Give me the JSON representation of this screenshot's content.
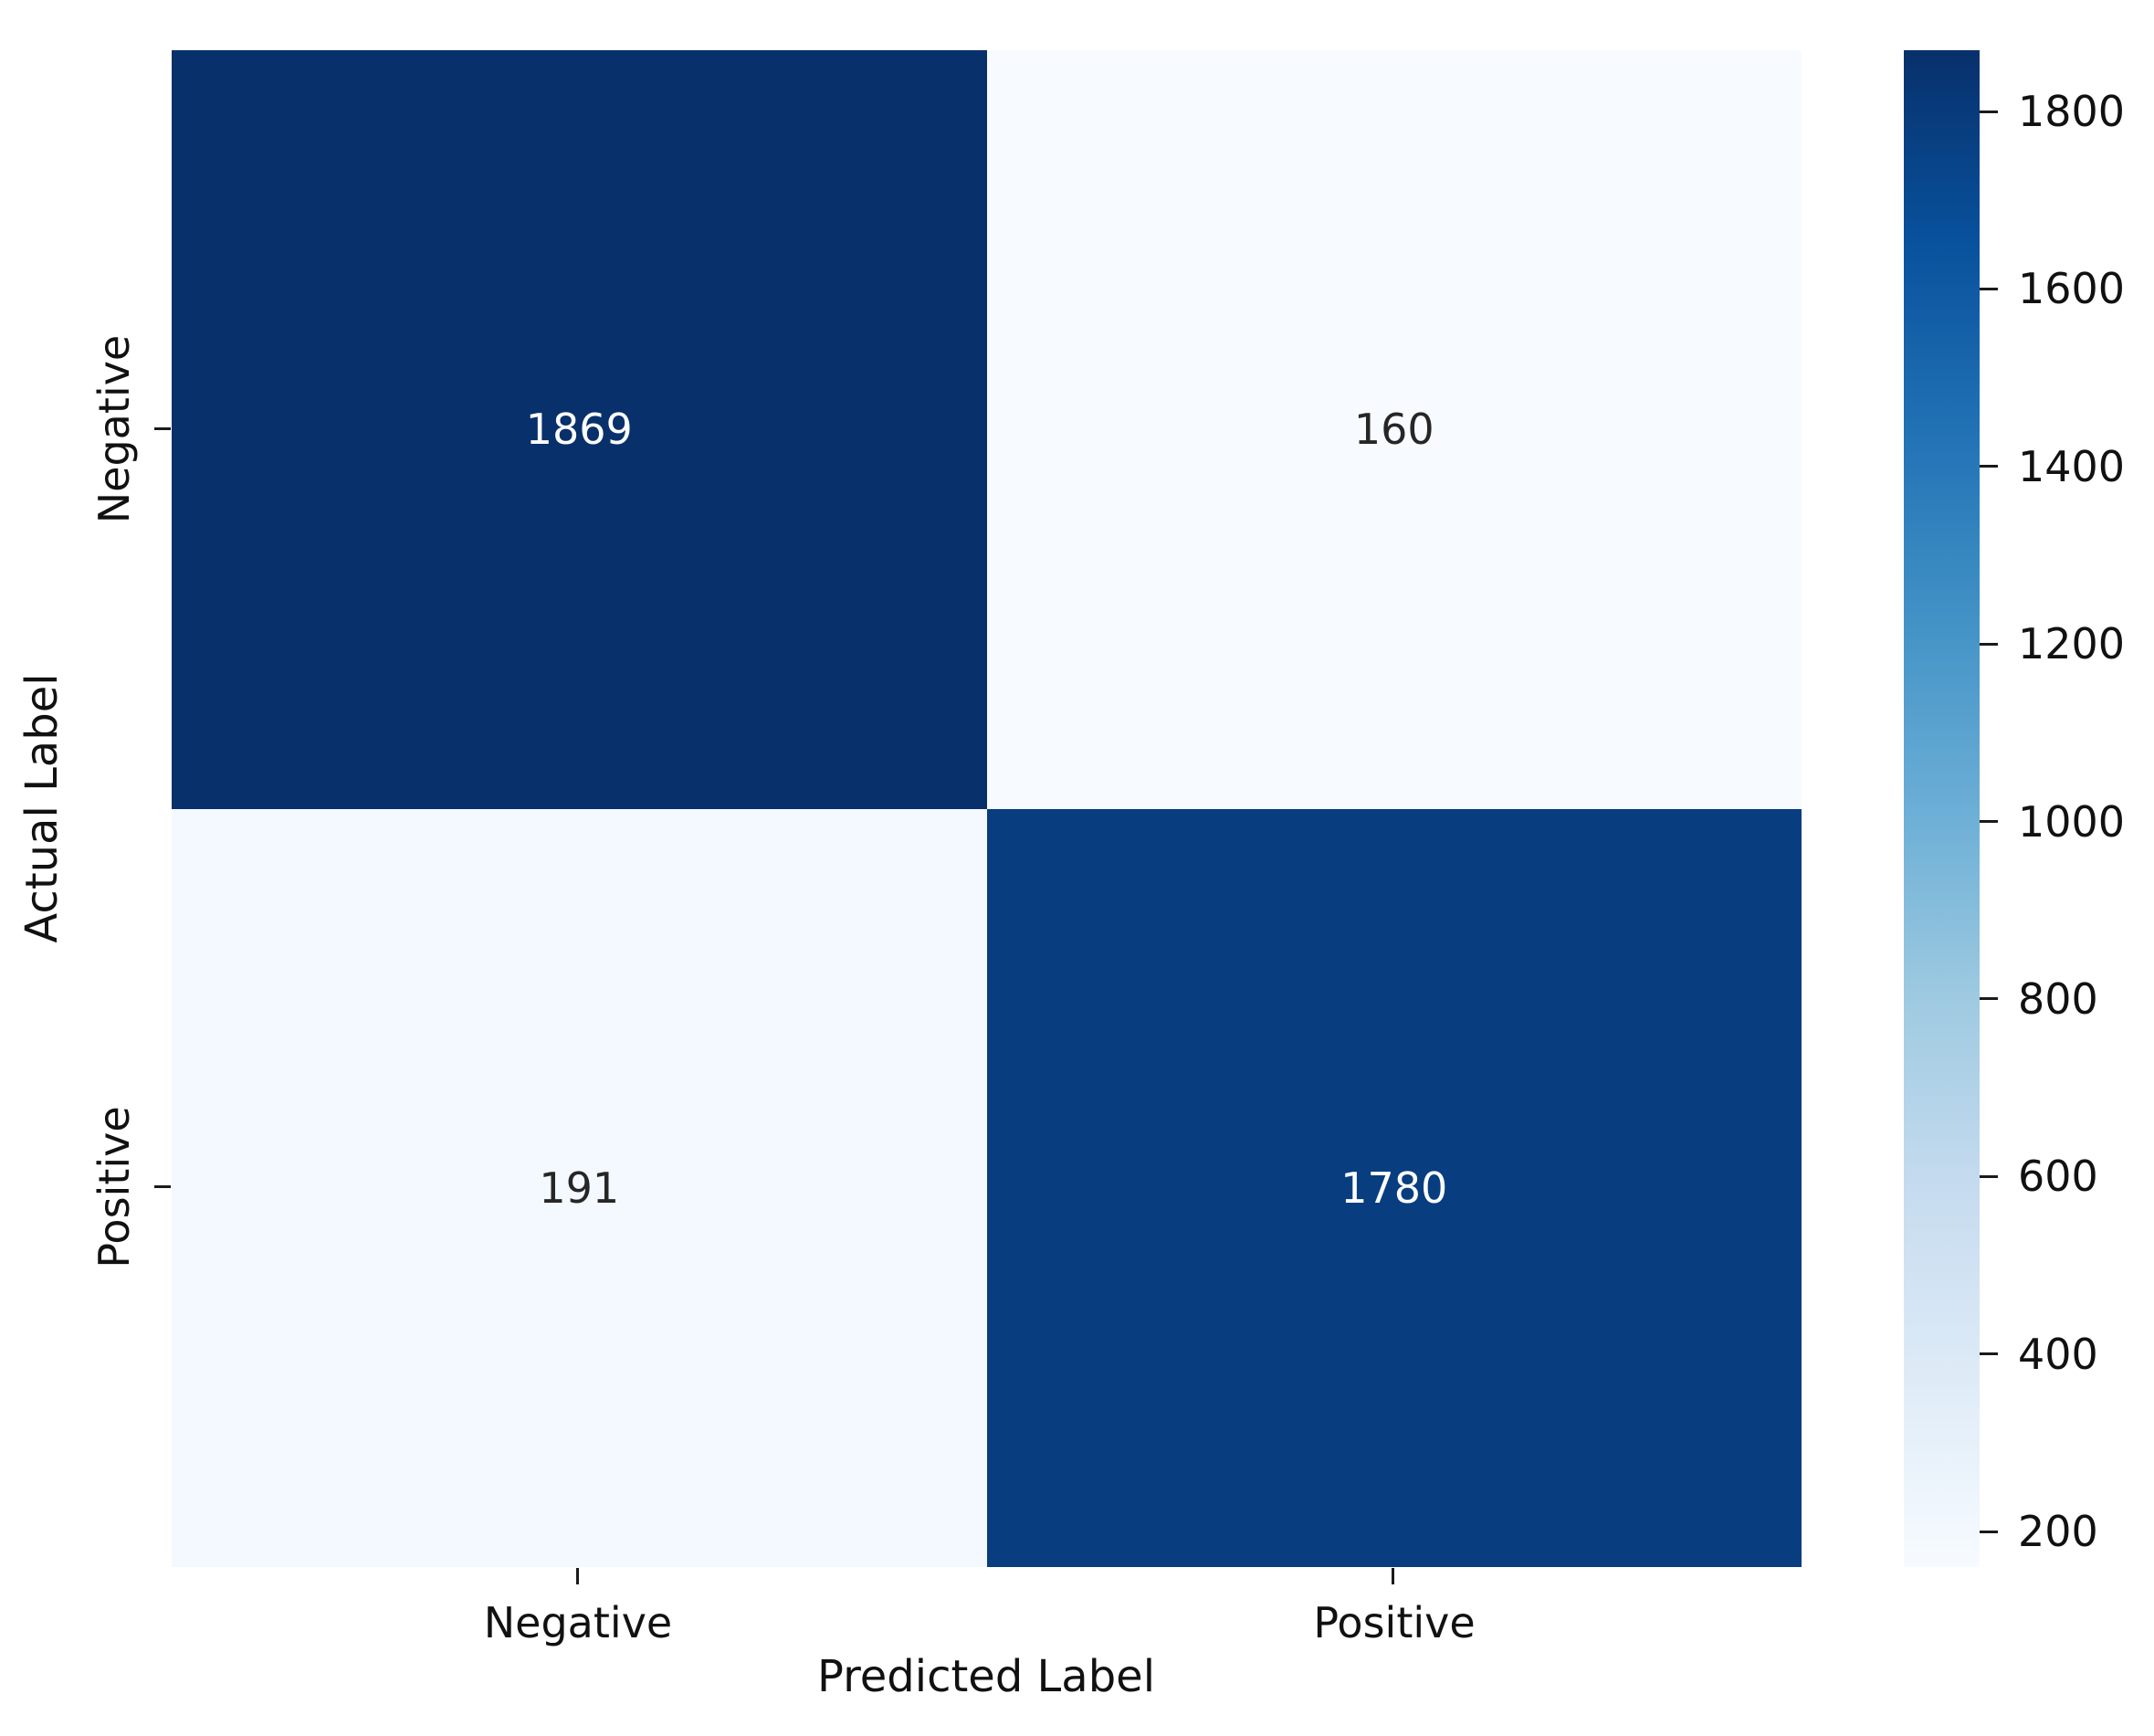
{
  "chart_data": {
    "type": "heatmap",
    "title": "",
    "xlabel": "Predicted Label",
    "ylabel": "Actual Label",
    "x_categories": [
      "Negative",
      "Positive"
    ],
    "y_categories": [
      "Negative",
      "Positive"
    ],
    "matrix": [
      [
        1869,
        160
      ],
      [
        191,
        1780
      ]
    ],
    "vmin": 160,
    "vmax": 1869,
    "colormap": "Blues",
    "colorbar_ticks": [
      200,
      400,
      600,
      800,
      1000,
      1200,
      1400,
      1600,
      1800
    ],
    "legend_position": "colorbar-right",
    "grid": false,
    "annotation_format": "integer"
  },
  "style": {
    "background": "#ffffff",
    "cell_colors": [
      [
        "#08306b",
        "#f7fbff"
      ],
      [
        "#f3f9fe",
        "#083e7f"
      ]
    ],
    "cell_text_colors": [
      [
        "#ffffff",
        "#262626"
      ],
      [
        "#262626",
        "#ffffff"
      ]
    ],
    "colormap_stops": [
      "#f7fbff",
      "#deebf7",
      "#c6dbef",
      "#9ecae1",
      "#6baed6",
      "#4292c6",
      "#2171b5",
      "#08519c",
      "#08306b"
    ],
    "tick_color": "#1a1a1a",
    "text_color": "#111111"
  }
}
